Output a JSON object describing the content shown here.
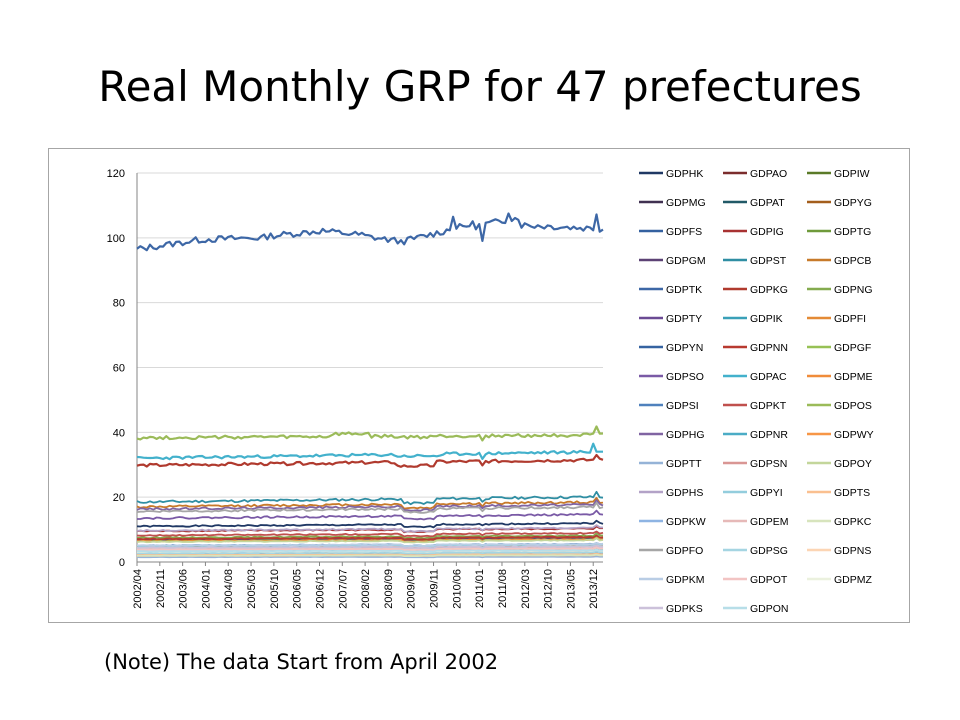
{
  "slide": {
    "title": "Real Monthly GRP for 47 prefectures",
    "note": "(Note) The data Start from April 2002"
  },
  "chart_data": {
    "type": "line",
    "title": "",
    "xlabel": "",
    "ylabel": "",
    "ylim": [
      0,
      120
    ],
    "yticks": [
      0,
      20,
      40,
      60,
      80,
      100,
      120
    ],
    "x_tick_labels": [
      "2002/04",
      "2002/11",
      "2003/06",
      "2004/01",
      "2004/08",
      "2005/03",
      "2005/10",
      "2006/05",
      "2006/12",
      "2007/07",
      "2008/02",
      "2008/09",
      "2009/04",
      "2009/11",
      "2010/06",
      "2011/01",
      "2011/08",
      "2012/03",
      "2012/10",
      "2013/05",
      "2013/12"
    ],
    "months": 144,
    "grid": "horizontal",
    "legend_placement": "right",
    "legend_columns": 3,
    "series": [
      {
        "name": "GDPHK",
        "color": "#1f3864",
        "level": 11
      },
      {
        "name": "GDPAO",
        "color": "#7b2c2c",
        "level": 3.5
      },
      {
        "name": "GDPIW",
        "color": "#5a7a28",
        "level": 3.6
      },
      {
        "name": "GDPMG",
        "color": "#403151",
        "level": 3.0
      },
      {
        "name": "GDPAT",
        "color": "#215967",
        "level": 2.7
      },
      {
        "name": "GDPYG",
        "color": "#a35e1c",
        "level": 4.4
      },
      {
        "name": "GDPFS",
        "color": "#3461a0",
        "level": 6.5
      },
      {
        "name": "GDPIG",
        "color": "#a83232",
        "level": 9.5
      },
      {
        "name": "GDPTG",
        "color": "#6f9a3b",
        "level": 6.9
      },
      {
        "name": "GDPGM",
        "color": "#5c4275",
        "level": 6.9
      },
      {
        "name": "GDPST",
        "color": "#2f8ea3",
        "level": 18.5
      },
      {
        "name": "GDPCB",
        "color": "#c77a2a",
        "level": 17.0
      },
      {
        "name": "GDPTK",
        "color": "#3d67a6",
        "level": 98,
        "profile": "tokyo"
      },
      {
        "name": "GDPKG",
        "color": "#b03a2e",
        "level": 30,
        "profile": "kanagawa"
      },
      {
        "name": "GDPNG",
        "color": "#84ab4e",
        "level": 7.5
      },
      {
        "name": "GDPTY",
        "color": "#6b4a94",
        "level": 3.7
      },
      {
        "name": "GDPIK",
        "color": "#3aa0b8",
        "level": 3.5
      },
      {
        "name": "GDPFI",
        "color": "#e48a35",
        "level": 2.6
      },
      {
        "name": "GDPYN",
        "color": "#3563a1",
        "level": 2.7
      },
      {
        "name": "GDPNN",
        "color": "#b83a30",
        "level": 7.1
      },
      {
        "name": "GDPGF",
        "color": "#97c155",
        "level": 6.4
      },
      {
        "name": "GDPSO",
        "color": "#7a5aa6",
        "level": 13.5
      },
      {
        "name": "GDPAC",
        "color": "#43b1cc",
        "level": 32,
        "profile": "aichi"
      },
      {
        "name": "GDPME",
        "color": "#f08c3a",
        "level": 6.4
      },
      {
        "name": "GDPSI",
        "color": "#4f81bd",
        "level": 5.1
      },
      {
        "name": "GDPKT",
        "color": "#c0504d",
        "level": 8.2
      },
      {
        "name": "GDPOS",
        "color": "#9bbb59",
        "level": 38,
        "profile": "osaka"
      },
      {
        "name": "GDPHG",
        "color": "#8064a2",
        "level": 16.3
      },
      {
        "name": "GDPNR",
        "color": "#4bacc6",
        "level": 3.0
      },
      {
        "name": "GDPWY",
        "color": "#f79646",
        "level": 2.9
      },
      {
        "name": "GDPTT",
        "color": "#95b3d7",
        "level": 1.5
      },
      {
        "name": "GDPSN",
        "color": "#d99694",
        "level": 1.9
      },
      {
        "name": "GDPOY",
        "color": "#c3d69b",
        "level": 6.2
      },
      {
        "name": "GDPHS",
        "color": "#b3a2c7",
        "level": 9.7
      },
      {
        "name": "GDPYI",
        "color": "#93cddd",
        "level": 4.9
      },
      {
        "name": "GDPTS",
        "color": "#fac090",
        "level": 2.2
      },
      {
        "name": "GDPKW",
        "color": "#8eb4e3",
        "level": 3.2
      },
      {
        "name": "GDPEM",
        "color": "#e6b9b8",
        "level": 4.0
      },
      {
        "name": "GDPKC",
        "color": "#d7e4bd",
        "level": 1.9
      },
      {
        "name": "GDPFO",
        "color": "#a6a6a6",
        "level": 15.6
      },
      {
        "name": "GDPSG",
        "color": "#a5d5e2",
        "level": 2.7
      },
      {
        "name": "GDPNS",
        "color": "#fcd5b4",
        "level": 3.8
      },
      {
        "name": "GDPKM",
        "color": "#b9cde5",
        "level": 5.1
      },
      {
        "name": "GDPOT",
        "color": "#f2c4c3",
        "level": 3.8
      },
      {
        "name": "GDPMZ",
        "color": "#ebf1de",
        "level": 3.2
      },
      {
        "name": "GDPKS",
        "color": "#ccc1da",
        "level": 4.4
      },
      {
        "name": "GDPON",
        "color": "#b7dee8",
        "level": 3.3
      }
    ]
  }
}
